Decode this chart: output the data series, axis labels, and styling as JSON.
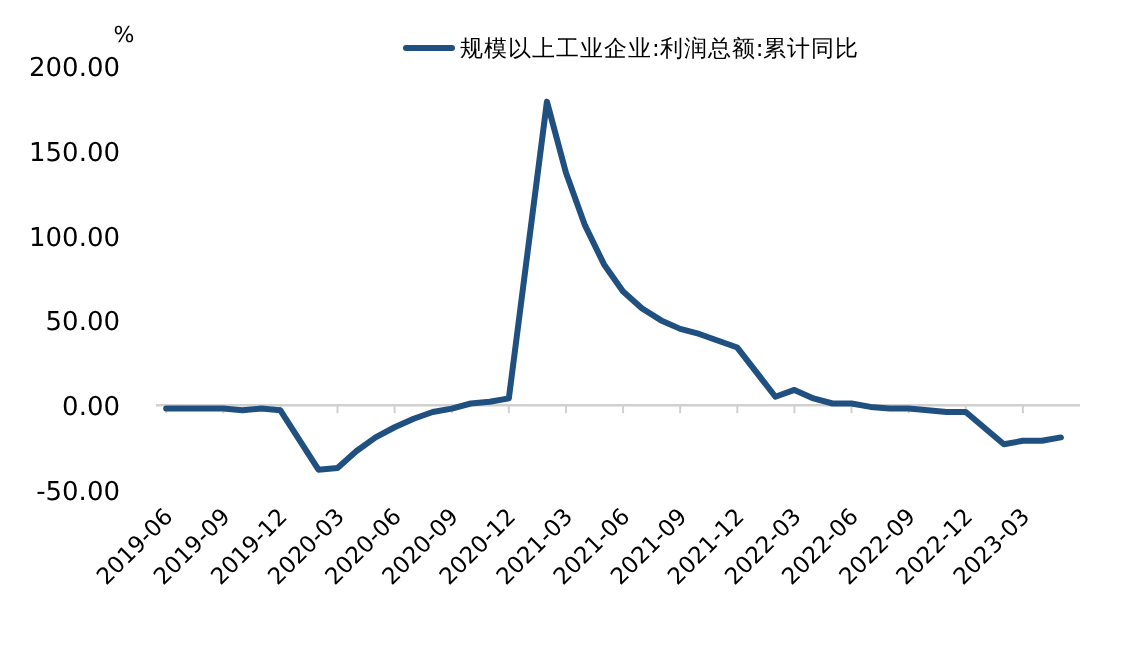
{
  "chart_data": {
    "type": "line",
    "ylabel": "%",
    "legend": "top",
    "x": [
      "2019-06",
      "2019-07",
      "2019-08",
      "2019-09",
      "2019-10",
      "2019-11",
      "2019-12",
      "2020-02",
      "2020-03",
      "2020-04",
      "2020-05",
      "2020-06",
      "2020-07",
      "2020-08",
      "2020-09",
      "2020-10",
      "2020-11",
      "2020-12",
      "2021-02",
      "2021-03",
      "2021-04",
      "2021-05",
      "2021-06",
      "2021-07",
      "2021-08",
      "2021-09",
      "2021-10",
      "2021-11",
      "2021-12",
      "2022-02",
      "2022-03",
      "2022-04",
      "2022-05",
      "2022-06",
      "2022-07",
      "2022-08",
      "2022-09",
      "2022-10",
      "2022-11",
      "2022-12",
      "2023-02",
      "2023-03",
      "2023-04",
      "2023-05"
    ],
    "series": [
      {
        "name": "规模以上工业企业:利润总额:累计同比",
        "color": "#1f5080",
        "values": [
          -2,
          -2,
          -2,
          -2,
          -3,
          -2,
          -3,
          -38,
          -37,
          -27,
          -19,
          -13,
          -8,
          -4,
          -2,
          1,
          2,
          4,
          179,
          137,
          106,
          83,
          67,
          57,
          50,
          45,
          42,
          38,
          34,
          5,
          9,
          4,
          1,
          1,
          -1,
          -2,
          -2,
          -3,
          -4,
          -4,
          -23,
          -21,
          -21,
          -19
        ]
      }
    ],
    "xlim": [
      "2019-05-15",
      "2023-06"
    ],
    "xticks": [
      "2019-06",
      "2019-09",
      "2019-12",
      "2020-03",
      "2020-06",
      "2020-09",
      "2020-12",
      "2021-03",
      "2021-06",
      "2021-09",
      "2021-12",
      "2022-03",
      "2022-06",
      "2022-09",
      "2022-12",
      "2023-03"
    ],
    "ylim": [
      -50,
      200
    ],
    "yticks": [
      {
        "value": -50,
        "label": "-50.00"
      },
      {
        "value": 0,
        "label": "0.00"
      },
      {
        "value": 50,
        "label": "50.00"
      },
      {
        "value": 100,
        "label": "100.00"
      },
      {
        "value": 150,
        "label": "150.00"
      },
      {
        "value": 200,
        "label": "200.00"
      }
    ],
    "line_style": "solid",
    "marker": "none"
  }
}
